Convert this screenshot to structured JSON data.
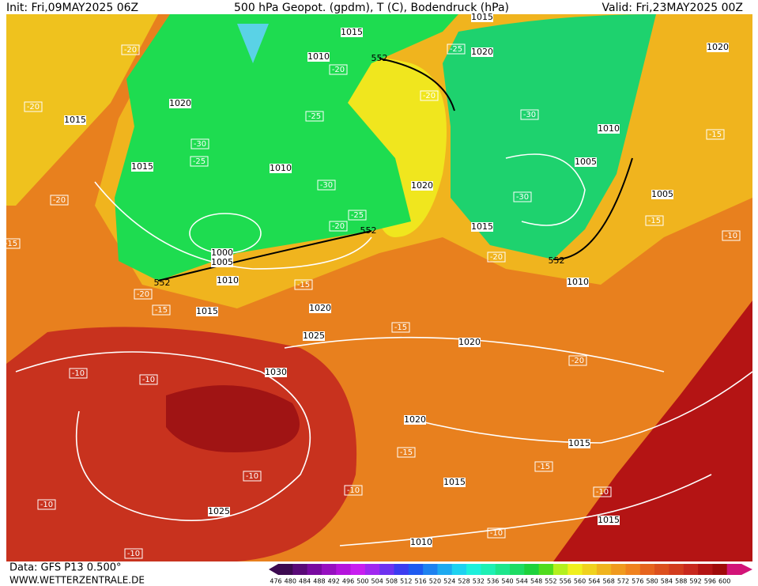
{
  "header": {
    "init": "Init: Fri,09MAY2025 06Z",
    "title": "500 hPa Geopot. (gpdm), T (C), Bodendruck (hPa)",
    "valid": "Valid: Fri,23MAY2025 00Z"
  },
  "footer": {
    "data": "Data: GFS P13 0.500°",
    "site": "WWW.WETTERZENTRALE.DE"
  },
  "geopotential_labels": [
    "552",
    "552",
    "552",
    "552"
  ],
  "isobar_labels": [
    "1015",
    "1015",
    "1010",
    "1020",
    "1020",
    "1020",
    "1015",
    "1015",
    "1010",
    "1010",
    "1005",
    "1020",
    "1005",
    "1015",
    "1000",
    "1005",
    "1010",
    "1010",
    "1015",
    "1020",
    "1025",
    "1020",
    "1030",
    "1020",
    "1015",
    "1015",
    "1025",
    "1015",
    "1010"
  ],
  "temperature_labels": [
    "-20",
    "-25",
    "-20",
    "-20",
    "-20",
    "-25",
    "-30",
    "-30",
    "-25",
    "-15",
    "-30",
    "-20",
    "-30",
    "-25",
    "-20",
    "-15",
    "-10",
    "-15",
    "-20",
    "-20",
    "-15",
    "-15",
    "-15",
    "-20",
    "-10",
    "-10",
    "-15",
    "-15",
    "-10",
    "-10",
    "-10",
    "-10",
    "-10",
    "-10"
  ],
  "colorbar": {
    "labels": [
      476,
      480,
      484,
      488,
      492,
      496,
      500,
      504,
      508,
      512,
      516,
      520,
      524,
      528,
      532,
      536,
      540,
      544,
      548,
      552,
      556,
      560,
      564,
      568,
      572,
      576,
      580,
      584,
      588,
      592,
      596,
      600
    ],
    "colors": [
      "#3c0a50",
      "#5a0a78",
      "#780aa0",
      "#9610c0",
      "#b414dc",
      "#c81ef0",
      "#a028f0",
      "#6e32f0",
      "#3c3cf0",
      "#1e5af0",
      "#1e82f0",
      "#1eaaf0",
      "#1ed2f0",
      "#1ef0dc",
      "#1ef0b4",
      "#1ee68c",
      "#1edc64",
      "#1ed23c",
      "#50dc1e",
      "#b4f01e",
      "#f0f01e",
      "#f0d21e",
      "#f0b41e",
      "#f09a1e",
      "#f0821e",
      "#e6641e",
      "#dc501e",
      "#d23c1e",
      "#c8281e",
      "#b41414",
      "#a00a0a",
      "#d21478"
    ]
  }
}
